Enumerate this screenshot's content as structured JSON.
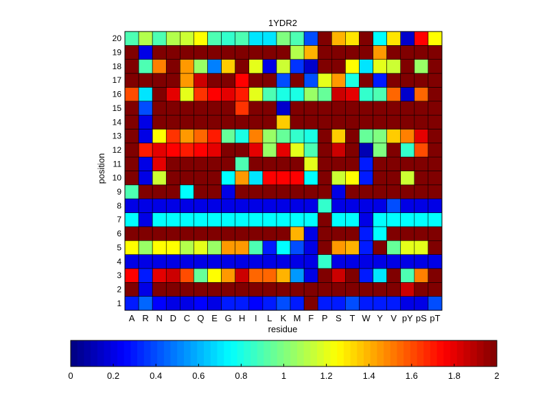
{
  "chart_data": {
    "type": "heatmap",
    "title": "1YDR2",
    "xlabel": "residue",
    "ylabel": "position",
    "x_categories": [
      "A",
      "R",
      "N",
      "D",
      "C",
      "Q",
      "E",
      "G",
      "H",
      "I",
      "L",
      "K",
      "M",
      "F",
      "P",
      "S",
      "T",
      "W",
      "Y",
      "V",
      "pY",
      "pS",
      "pT"
    ],
    "y_categories": [
      "1",
      "2",
      "3",
      "4",
      "5",
      "6",
      "7",
      "8",
      "9",
      "10",
      "11",
      "12",
      "13",
      "14",
      "15",
      "16",
      "17",
      "18",
      "19",
      "20"
    ],
    "colormap": "jet",
    "clim": [
      0,
      2
    ],
    "colorbar_ticks": [
      "0",
      "0.2",
      "0.4",
      "0.6",
      "0.8",
      "1",
      "1.2",
      "1.4",
      "1.6",
      "1.8",
      "2"
    ],
    "values": [
      [
        0.3,
        0.45,
        0.25,
        0.2,
        0.2,
        0.25,
        0.2,
        0.3,
        0.3,
        0.25,
        0.3,
        0.4,
        0.3,
        2.0,
        0.3,
        0.3,
        0.4,
        0.3,
        0.3,
        0.3,
        0.2,
        0.2,
        0.4
      ],
      [
        2.0,
        0.2,
        2.0,
        2.0,
        2.0,
        2.0,
        2.0,
        2.0,
        2.0,
        2.0,
        2.0,
        2.0,
        2.0,
        2.0,
        2.0,
        2.0,
        2.0,
        2.0,
        2.0,
        2.0,
        1.85,
        2.0,
        2.0
      ],
      [
        1.75,
        0.3,
        1.8,
        1.85,
        1.6,
        0.95,
        1.25,
        1.45,
        1.85,
        1.55,
        1.55,
        1.4,
        0.55,
        0.2,
        2.0,
        1.85,
        2.0,
        0.3,
        0.7,
        2.0,
        0.9,
        1.5,
        2.0
      ],
      [
        0.2,
        0.2,
        0.2,
        0.2,
        0.2,
        0.2,
        0.2,
        0.2,
        0.2,
        0.2,
        0.2,
        0.2,
        0.2,
        0.2,
        0.85,
        0.2,
        0.2,
        0.2,
        0.2,
        0.2,
        0.2,
        0.2,
        0.2
      ],
      [
        1.25,
        1.05,
        1.25,
        1.25,
        1.1,
        1.2,
        1.05,
        1.45,
        1.45,
        0.9,
        0.3,
        0.75,
        0.4,
        0.2,
        2.0,
        1.45,
        1.4,
        0.3,
        2.0,
        0.95,
        1.2,
        1.2,
        2.0
      ],
      [
        2.0,
        2.0,
        2.0,
        2.0,
        2.0,
        2.0,
        2.0,
        2.0,
        2.0,
        2.0,
        2.0,
        2.0,
        1.4,
        0.2,
        2.0,
        2.0,
        2.0,
        0.3,
        0.75,
        2.0,
        2.0,
        2.0,
        2.0
      ],
      [
        0.75,
        0.2,
        0.75,
        0.75,
        0.75,
        0.75,
        0.75,
        0.75,
        0.75,
        0.75,
        0.75,
        0.75,
        0.75,
        0.75,
        2.0,
        0.75,
        0.75,
        0.2,
        0.75,
        0.75,
        0.75,
        0.75,
        0.75
      ],
      [
        0.2,
        0.2,
        0.2,
        0.2,
        0.2,
        0.2,
        0.2,
        0.2,
        0.2,
        0.2,
        0.2,
        0.2,
        0.2,
        0.2,
        0.85,
        0.2,
        0.2,
        0.2,
        0.2,
        0.4,
        0.2,
        0.2,
        0.2
      ],
      [
        0.9,
        2.0,
        2.0,
        2.0,
        0.75,
        2.0,
        2.0,
        0.2,
        2.0,
        2.0,
        2.0,
        2.0,
        2.0,
        2.0,
        2.0,
        0.2,
        2.0,
        2.0,
        2.0,
        2.0,
        2.0,
        2.0,
        2.0
      ],
      [
        2.0,
        0.2,
        1.15,
        2.0,
        2.0,
        2.0,
        2.0,
        0.75,
        1.45,
        0.7,
        1.75,
        1.75,
        1.75,
        0.75,
        2.0,
        1.15,
        1.25,
        0.3,
        2.0,
        2.0,
        1.15,
        2.0,
        2.0
      ],
      [
        2.0,
        0.2,
        1.8,
        2.0,
        2.0,
        2.0,
        2.0,
        2.0,
        0.9,
        2.0,
        2.0,
        2.0,
        2.0,
        1.2,
        2.0,
        2.0,
        2.0,
        0.3,
        2.0,
        2.0,
        2.0,
        2.0,
        2.0
      ],
      [
        2.0,
        1.7,
        1.8,
        1.75,
        1.7,
        1.75,
        1.8,
        2.0,
        2.0,
        1.8,
        1.05,
        1.8,
        1.2,
        0.9,
        2.0,
        1.85,
        2.0,
        0.1,
        1.0,
        2.0,
        0.85,
        1.6,
        2.0
      ],
      [
        2.0,
        0.2,
        1.25,
        1.65,
        1.45,
        1.55,
        1.7,
        0.95,
        0.8,
        1.5,
        1.05,
        0.95,
        0.85,
        0.8,
        2.0,
        1.35,
        2.0,
        0.95,
        1.0,
        1.35,
        1.5,
        1.8,
        2.0
      ],
      [
        2.0,
        0.2,
        2.0,
        2.0,
        2.0,
        2.0,
        2.0,
        2.0,
        2.0,
        2.0,
        2.0,
        1.35,
        2.0,
        2.0,
        2.0,
        2.0,
        2.0,
        2.0,
        2.0,
        2.0,
        2.0,
        2.0,
        2.0
      ],
      [
        2.0,
        0.4,
        2.0,
        2.0,
        2.0,
        2.0,
        2.0,
        2.0,
        1.65,
        2.0,
        2.0,
        0.15,
        2.0,
        2.0,
        2.0,
        2.0,
        2.0,
        2.0,
        2.0,
        2.0,
        2.0,
        2.0,
        2.0
      ],
      [
        1.6,
        0.7,
        2.0,
        1.8,
        1.2,
        1.65,
        1.75,
        1.8,
        1.7,
        1.2,
        0.9,
        0.8,
        0.8,
        1.05,
        0.95,
        1.85,
        1.8,
        0.85,
        0.9,
        1.55,
        0.15,
        1.55,
        2.0
      ],
      [
        2.0,
        2.0,
        2.0,
        2.0,
        1.45,
        1.85,
        2.0,
        2.0,
        1.75,
        2.0,
        2.0,
        0.4,
        2.0,
        0.4,
        1.2,
        1.45,
        0.8,
        2.0,
        0.3,
        2.0,
        2.0,
        2.0,
        2.0
      ],
      [
        2.0,
        0.9,
        1.5,
        2.0,
        1.45,
        1.05,
        0.5,
        1.35,
        2.0,
        1.2,
        0.2,
        1.15,
        0.35,
        0.15,
        2.0,
        2.0,
        1.25,
        0.7,
        1.2,
        1.15,
        2.0,
        1.05,
        2.0
      ],
      [
        2.0,
        0.2,
        2.0,
        2.0,
        2.0,
        2.0,
        2.0,
        2.0,
        2.0,
        2.0,
        2.0,
        2.0,
        1.1,
        1.4,
        2.0,
        2.0,
        2.0,
        2.0,
        1.45,
        2.0,
        2.0,
        2.0,
        2.0
      ],
      [
        0.9,
        1.1,
        0.9,
        1.1,
        1.15,
        1.25,
        0.9,
        0.85,
        0.9,
        0.7,
        0.7,
        1.0,
        0.9,
        0.4,
        2.0,
        1.4,
        1.3,
        2.0,
        0.75,
        1.3,
        0.15,
        1.75,
        1.25
      ]
    ]
  }
}
